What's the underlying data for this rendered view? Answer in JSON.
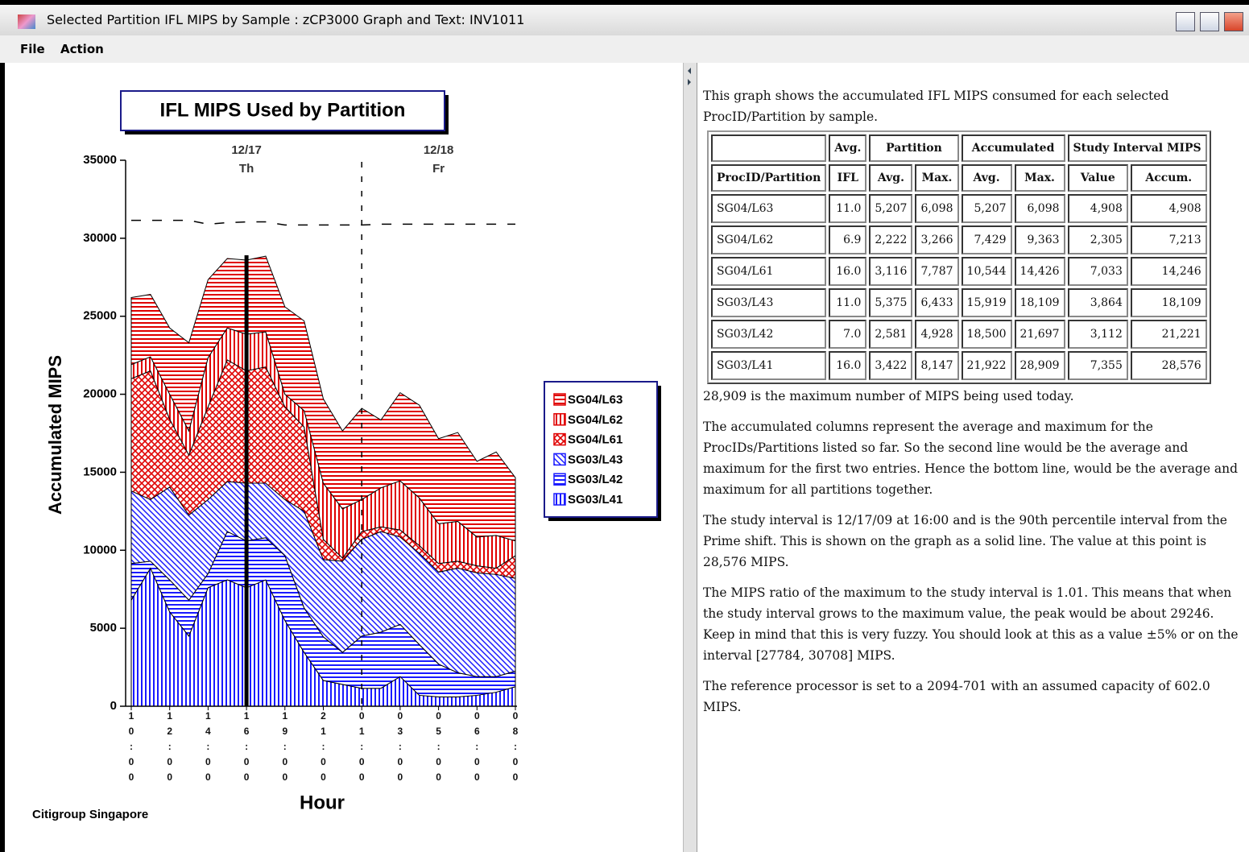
{
  "window": {
    "title": "Selected Partition IFL MIPS by Sample : zCP3000 Graph and Text: INV1011",
    "menu": [
      "File",
      "Action"
    ]
  },
  "chart_data": {
    "type": "stacked-area",
    "title": "IFL MIPS Used by Partition",
    "x_label": "Hour",
    "y_label": "Accumulated MIPS",
    "footer": "Citigroup Singapore",
    "categories": [
      "10:00",
      null,
      "12:00",
      null,
      "14:00",
      null,
      "16:00",
      null,
      "19:00",
      null,
      "21:00",
      null,
      "01:00",
      null,
      "03:00",
      null,
      "05:00",
      null,
      "06:00",
      null,
      "08:00"
    ],
    "day_labels": [
      {
        "date": "12/17",
        "day": "Th",
        "index": 6
      },
      {
        "date": "12/18",
        "day": "Fr",
        "index": 16
      }
    ],
    "study_interval_index": 6,
    "day_divider_index": 12,
    "reference_line": {
      "values": [
        31150,
        31150,
        31150,
        31150,
        30900,
        31000,
        31050,
        31050,
        30850,
        30850,
        30850,
        30850,
        30850,
        30900,
        30900,
        30900,
        30900,
        30900,
        30900,
        30900,
        30900
      ]
    },
    "ylim": [
      0,
      35000
    ],
    "yticks": [
      0,
      5000,
      10000,
      15000,
      20000,
      25000,
      30000,
      35000
    ],
    "series": [
      {
        "name": "SG04/L63",
        "color": "#e00000",
        "pattern": "hlines",
        "values": [
          4300,
          4000,
          4250,
          5650,
          5000,
          4450,
          4750,
          4850,
          5600,
          5750,
          5400,
          5000,
          5850,
          4350,
          5650,
          5950,
          5450,
          5700,
          4850,
          5350,
          4050
        ]
      },
      {
        "name": "SG04/L62",
        "color": "#e00000",
        "pattern": "vlines",
        "values": [
          900,
          900,
          1600,
          1550,
          3150,
          2050,
          2350,
          2250,
          800,
          1050,
          3600,
          3150,
          2050,
          2500,
          3150,
          3050,
          2550,
          2550,
          1850,
          2100,
          950
        ]
      },
      {
        "name": "SG04/L61",
        "color": "#e00000",
        "pattern": "crosshatch",
        "values": [
          7200,
          8250,
          4350,
          3850,
          5950,
          7800,
          7200,
          7450,
          5950,
          5400,
          1300,
          200,
          500,
          300,
          450,
          500,
          550,
          450,
          450,
          400,
          1450
        ]
      },
      {
        "name": "SG03/L43",
        "color": "#1a1aff",
        "pattern": "diag",
        "values": [
          4650,
          3950,
          5950,
          5450,
          4750,
          3200,
          3700,
          3500,
          3600,
          6200,
          4950,
          5850,
          6200,
          6450,
          5600,
          5850,
          5900,
          6700,
          6650,
          6550,
          5950
        ]
      },
      {
        "name": "SG03/L42",
        "color": "#1a1aff",
        "pattern": "hlines",
        "values": [
          2350,
          450,
          2050,
          2300,
          900,
          3100,
          3000,
          2700,
          4150,
          2850,
          2800,
          2050,
          3350,
          3600,
          3350,
          3250,
          2100,
          1550,
          1200,
          1000,
          1000
        ]
      },
      {
        "name": "SG03/L41",
        "color": "#1a1aff",
        "pattern": "vlines",
        "values": [
          6800,
          8850,
          6050,
          4500,
          7600,
          8100,
          7600,
          8100,
          5500,
          3450,
          1650,
          1400,
          1150,
          1150,
          1900,
          700,
          600,
          600,
          700,
          900,
          1250
        ]
      }
    ]
  },
  "description": {
    "intro": "This graph shows the accumulated IFL MIPS consumed for each selected ProcID/Partition by sample.",
    "paragraphs": [
      "28,909 is the maximum number of MIPS being used today.",
      "The accumulated columns represent the average and maximum for the ProcIDs/Partitions listed so far. So the second line would be the average and maximum for the first two entries. Hence the bottom line, would be the average and maximum for all partitions together.",
      "The study interval is 12/17/09 at 16:00 and is the 90th percentile interval from the Prime shift.  This is shown on the graph as a solid line.  The value at this point is 28,576 MIPS.",
      "The MIPS ratio of the maximum to the study interval is 1.01.  This means that when the study interval grows to the maximum value, the peak would be about 29246. Keep in mind that this is very fuzzy.  You should look at this as a value ±5% or on the interval [27784, 30708] MIPS.",
      "The reference processor is set to a 2094-701 with an assumed capacity of 602.0 MIPS."
    ]
  },
  "table": {
    "header_top": [
      "Avg.",
      "Partition",
      "Accumulated",
      "Study Interval MIPS"
    ],
    "header": [
      "ProcID/Partition",
      "IFL",
      "Avg.",
      "Max.",
      "Avg.",
      "Max.",
      "Value",
      "Accum."
    ],
    "rows": [
      [
        "SG04/L63",
        "11.0",
        "5,207",
        "6,098",
        "5,207",
        "6,098",
        "4,908",
        "4,908"
      ],
      [
        "SG04/L62",
        "6.9",
        "2,222",
        "3,266",
        "7,429",
        "9,363",
        "2,305",
        "7,213"
      ],
      [
        "SG04/L61",
        "16.0",
        "3,116",
        "7,787",
        "10,544",
        "14,426",
        "7,033",
        "14,246"
      ],
      [
        "SG03/L43",
        "11.0",
        "5,375",
        "6,433",
        "15,919",
        "18,109",
        "3,864",
        "18,109"
      ],
      [
        "SG03/L42",
        "7.0",
        "2,581",
        "4,928",
        "18,500",
        "21,697",
        "3,112",
        "21,221"
      ],
      [
        "SG03/L41",
        "16.0",
        "3,422",
        "8,147",
        "21,922",
        "28,909",
        "7,355",
        "28,576"
      ]
    ]
  }
}
